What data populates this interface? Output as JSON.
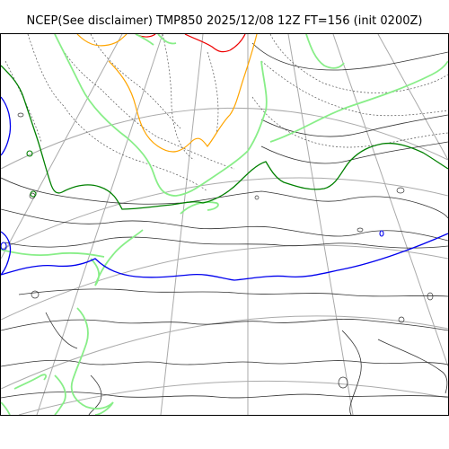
{
  "title": "NCEP(See disclaimer) TMP850 2025/12/08 12Z FT=156 (init 0200Z)",
  "map": {
    "variable": "TMP850",
    "colors": {
      "graticule": "#aaaaaa",
      "coastline": "#333333",
      "isotherm_default": "#000000",
      "isotherm_zero": "#0000ee",
      "isotherm_green_dark": "#008000",
      "isotherm_green_light": "#88ee88",
      "isotherm_orange": "#ffa500",
      "isotherm_red": "#ee0000"
    }
  }
}
